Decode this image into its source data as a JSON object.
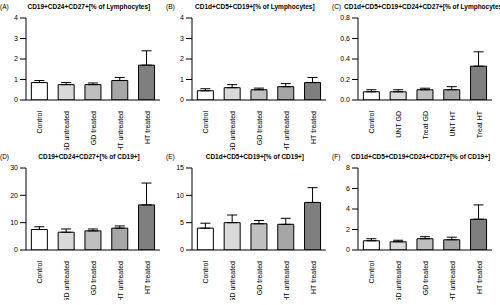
{
  "chart_data": [
    {
      "type": "bar",
      "panel": "(A)",
      "title": "CD19+CD24+CD27+[% of Lymphocytes]",
      "categories": [
        "Control",
        "GD untreated",
        "GD treated",
        "HT untreated",
        "HT treated"
      ],
      "values": [
        0.85,
        0.75,
        0.75,
        0.95,
        1.7
      ],
      "errors": [
        0.1,
        0.1,
        0.08,
        0.15,
        0.7
      ],
      "colors": [
        "#ffffff",
        "#d9d9d9",
        "#bfbfbf",
        "#a6a6a6",
        "#7f7f7f"
      ],
      "ylim": [
        0,
        4
      ],
      "yticks": [
        0,
        1,
        2,
        3,
        4
      ],
      "grid": false
    },
    {
      "type": "bar",
      "panel": "(B)",
      "title": "CD1d+CD5+CD19+[% of Lymphocytes]",
      "categories": [
        "Control",
        "GD untreated",
        "GD treated",
        "HT untreated",
        "HT treated"
      ],
      "values": [
        0.45,
        0.6,
        0.5,
        0.65,
        0.85
      ],
      "errors": [
        0.1,
        0.15,
        0.08,
        0.15,
        0.25
      ],
      "colors": [
        "#ffffff",
        "#d9d9d9",
        "#bfbfbf",
        "#a6a6a6",
        "#7f7f7f"
      ],
      "ylim": [
        0,
        4
      ],
      "yticks": [
        0,
        1,
        2,
        3,
        4
      ],
      "grid": false
    },
    {
      "type": "bar",
      "panel": "(C)",
      "title": "CD1d+CD5+CD19+CD24+CD27+[% of Lymphocytes]",
      "categories": [
        "Control",
        "UNT GD",
        "Treat GD",
        "UNT HT",
        "Treat HT"
      ],
      "values": [
        0.08,
        0.08,
        0.1,
        0.1,
        0.33
      ],
      "errors": [
        0.02,
        0.02,
        0.015,
        0.03,
        0.14
      ],
      "colors": [
        "#ffffff",
        "#d9d9d9",
        "#bfbfbf",
        "#a6a6a6",
        "#7f7f7f"
      ],
      "ylim": [
        0,
        0.8
      ],
      "yticks": [
        {
          "value": 0,
          "label": "0.0"
        },
        0.2,
        0.4,
        0.6,
        0.8
      ],
      "grid": false
    },
    {
      "type": "bar",
      "panel": "(D)",
      "title": "CD19+CD24+CD27+[% of CD19+]",
      "categories": [
        "Control",
        "GD untreated",
        "GD treated",
        "HT untreated",
        "HT treated"
      ],
      "values": [
        7.5,
        6.5,
        7,
        8,
        16.5
      ],
      "errors": [
        1,
        1.2,
        0.7,
        0.8,
        8
      ],
      "colors": [
        "#ffffff",
        "#d9d9d9",
        "#bfbfbf",
        "#a6a6a6",
        "#7f7f7f"
      ],
      "ylim": [
        0,
        30
      ],
      "yticks": [
        0,
        10,
        20,
        30
      ],
      "grid": false
    },
    {
      "type": "bar",
      "panel": "(E)",
      "title": "CD1d+CD5+CD19+[% of CD19+]",
      "categories": [
        "Control",
        "GD untreated",
        "GD treated",
        "HT untreated",
        "HT treated"
      ],
      "values": [
        4,
        5,
        4.8,
        4.7,
        8.7
      ],
      "errors": [
        0.9,
        1.4,
        0.6,
        1.1,
        2.7
      ],
      "colors": [
        "#ffffff",
        "#d9d9d9",
        "#bfbfbf",
        "#a6a6a6",
        "#7f7f7f"
      ],
      "ylim": [
        0,
        15
      ],
      "yticks": [
        0,
        5,
        10,
        15
      ],
      "grid": false
    },
    {
      "type": "bar",
      "panel": "(F)",
      "title": "CD1d+CD5+CD19+CD24+CD27+[% of CD19+]",
      "categories": [
        "Control",
        "GD untreated",
        "GD treated",
        "HT untreated",
        "HT treated"
      ],
      "values": [
        0.9,
        0.8,
        1.1,
        1.0,
        3.0
      ],
      "errors": [
        0.2,
        0.15,
        0.2,
        0.25,
        1.4
      ],
      "colors": [
        "#ffffff",
        "#d9d9d9",
        "#bfbfbf",
        "#a6a6a6",
        "#7f7f7f"
      ],
      "ylim": [
        0,
        8
      ],
      "yticks": [
        0,
        2,
        4,
        6,
        8
      ],
      "grid": false
    }
  ]
}
